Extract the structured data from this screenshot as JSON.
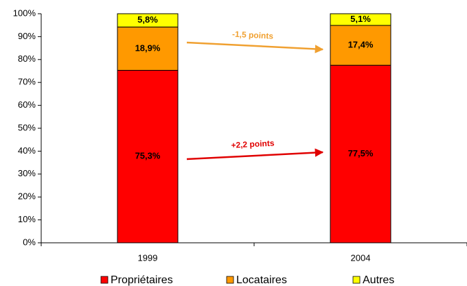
{
  "chart_data": {
    "type": "stacked_bar",
    "categories": [
      "1999",
      "2004"
    ],
    "series": [
      {
        "name": "Propriétaires",
        "color": "#ff0000",
        "values": [
          75.3,
          77.5
        ],
        "value_labels": [
          "75,3%",
          "77,5%"
        ]
      },
      {
        "name": "Locataires",
        "color": "#ff9900",
        "values": [
          18.9,
          17.4
        ],
        "value_labels": [
          "18,9%",
          "17,4%"
        ]
      },
      {
        "name": "Autres",
        "color": "#ffff00",
        "values": [
          5.8,
          5.1
        ],
        "value_labels": [
          "5,8%",
          "5,1%"
        ]
      }
    ],
    "ylim": [
      0,
      100
    ],
    "yticks": [
      {
        "value": 0,
        "label": "0%"
      },
      {
        "value": 10,
        "label": "10%"
      },
      {
        "value": 20,
        "label": "20%"
      },
      {
        "value": 30,
        "label": "30%"
      },
      {
        "value": 40,
        "label": "40%"
      },
      {
        "value": 50,
        "label": "50%"
      },
      {
        "value": 60,
        "label": "60%"
      },
      {
        "value": 70,
        "label": "70%"
      },
      {
        "value": 80,
        "label": "80%"
      },
      {
        "value": 90,
        "label": "90%"
      },
      {
        "value": 100,
        "label": "100%"
      }
    ],
    "annotations": [
      {
        "text": "-1,5 points",
        "color": "#f0a030"
      },
      {
        "text": "+2,2 points",
        "color": "#e00000"
      }
    ],
    "legend": "bottom"
  }
}
